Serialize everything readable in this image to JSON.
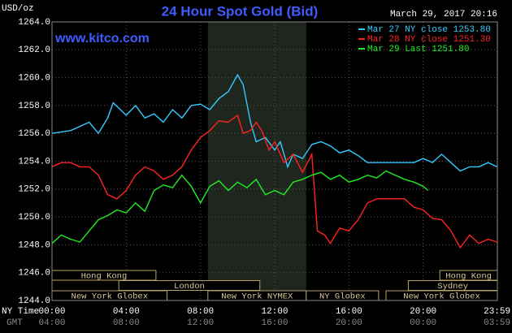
{
  "chart_data": {
    "type": "line",
    "title": "24 Hour Spot Gold (Bid)",
    "site": "www.kitco.com",
    "y_unit": "USD/oz",
    "timestamp": "March 29, 2017 20:16",
    "x_label_top": "NY Time",
    "x_label_bottom": "GMT",
    "xlim": [
      0,
      24
    ],
    "ylim": [
      1244,
      1264
    ],
    "grid": true,
    "legend": "top-right",
    "yticks": [
      {
        "value": 1244,
        "label": "1244.0"
      },
      {
        "value": 1246,
        "label": "1246.0"
      },
      {
        "value": 1248,
        "label": "1248.0"
      },
      {
        "value": 1250,
        "label": "1250.0"
      },
      {
        "value": 1252,
        "label": "1252.0"
      },
      {
        "value": 1254,
        "label": "1254.0"
      },
      {
        "value": 1256,
        "label": "1256.0"
      },
      {
        "value": 1258,
        "label": "1258.0"
      },
      {
        "value": 1260,
        "label": "1260.0"
      },
      {
        "value": 1262,
        "label": "1262.0"
      },
      {
        "value": 1264,
        "label": "1264.0"
      }
    ],
    "xticks": [
      {
        "value": 0,
        "label": "00:00"
      },
      {
        "value": 4,
        "label": "04:00"
      },
      {
        "value": 8,
        "label": "08:00"
      },
      {
        "value": 12,
        "label": "12:00"
      },
      {
        "value": 16,
        "label": "16:00"
      },
      {
        "value": 20,
        "label": "20:00"
      },
      {
        "value": 23.983,
        "label": "23:59"
      }
    ],
    "gmt_tick_labels": [
      "04:00",
      "08:00",
      "12:00",
      "16:00",
      "20:00",
      "00:00",
      "03:59"
    ],
    "sessions": [
      {
        "label": "Hong Kong",
        "start": 0,
        "end": 5.6
      },
      {
        "label": "London",
        "start": 3.6,
        "end": 11.2
      },
      {
        "label": "New York Globex",
        "start": 0,
        "end": 6.2
      },
      {
        "label": "New York NYMEX",
        "start": 8.4,
        "end": 13.7
      },
      {
        "label": "NY Globex",
        "start": 13.7,
        "end": 17.6
      },
      {
        "label": "Hong Kong",
        "start": 20.9,
        "end": 24
      },
      {
        "label": "Sydney",
        "start": 19.2,
        "end": 24
      },
      {
        "label": "New York Globex",
        "start": 18,
        "end": 24
      }
    ],
    "series": [
      {
        "name": "Mar 27 NY close 1253.80",
        "color": "#33ccff",
        "x": [
          0,
          1,
          2,
          2.5,
          3,
          3.3,
          4,
          4.5,
          5,
          5.5,
          6,
          6.5,
          7,
          7.5,
          8,
          8.5,
          9,
          9.5,
          10,
          10.3,
          10.7,
          11,
          11.5,
          12,
          12.3,
          12.7,
          13,
          13.5,
          14,
          14.5,
          15,
          15.5,
          16,
          16.5,
          17,
          18,
          19,
          19.5,
          20,
          20.5,
          21,
          21.5,
          22,
          22.5,
          23,
          23.5,
          23.98
        ],
        "values": [
          1256.0,
          1256.2,
          1256.8,
          1256.0,
          1257.1,
          1258.2,
          1257.3,
          1258.0,
          1257.1,
          1257.4,
          1256.8,
          1257.7,
          1257.1,
          1258.0,
          1258.1,
          1257.7,
          1258.5,
          1259.0,
          1260.2,
          1259.5,
          1256.8,
          1255.4,
          1255.7,
          1254.8,
          1255.4,
          1253.6,
          1254.5,
          1254.2,
          1255.2,
          1255.4,
          1255.1,
          1254.6,
          1254.8,
          1254.4,
          1253.9,
          1253.9,
          1253.9,
          1253.9,
          1254.2,
          1253.9,
          1254.5,
          1253.9,
          1253.3,
          1253.6,
          1253.6,
          1253.9,
          1253.6
        ]
      },
      {
        "name": "Mar 28 NY close 1251.30",
        "color": "#ff2222",
        "x": [
          0,
          0.5,
          1,
          1.5,
          2,
          2.5,
          3,
          3.5,
          4,
          4.5,
          5,
          5.5,
          6,
          6.5,
          7,
          7.5,
          8,
          8.5,
          9,
          9.5,
          10,
          10.3,
          10.7,
          11,
          11.3,
          11.7,
          12,
          12.5,
          13,
          13.5,
          14,
          14.3,
          14.7,
          15,
          15.5,
          16,
          16.5,
          17,
          17.5,
          18,
          19,
          19.5,
          20,
          20.5,
          21,
          21.5,
          22,
          22.5,
          23,
          23.5,
          23.98
        ],
        "values": [
          1253.6,
          1253.9,
          1253.9,
          1253.6,
          1253.6,
          1253.0,
          1251.6,
          1251.3,
          1251.9,
          1253.0,
          1253.6,
          1253.3,
          1252.7,
          1253.0,
          1253.6,
          1254.8,
          1255.7,
          1256.2,
          1256.9,
          1256.8,
          1257.3,
          1256.0,
          1256.2,
          1256.8,
          1256.2,
          1254.8,
          1255.4,
          1253.9,
          1254.5,
          1253.2,
          1254.5,
          1249.0,
          1248.7,
          1248.1,
          1249.2,
          1249.0,
          1249.8,
          1251.0,
          1251.3,
          1251.3,
          1251.3,
          1250.7,
          1250.5,
          1249.9,
          1249.8,
          1249.0,
          1247.8,
          1248.7,
          1248.1,
          1248.4,
          1248.2
        ]
      },
      {
        "name": "Mar 29 Last 1251.80",
        "color": "#22ee22",
        "x": [
          0,
          0.5,
          1,
          1.5,
          2,
          2.5,
          3,
          3.5,
          4,
          4.5,
          5,
          5.5,
          6,
          6.5,
          7,
          7.5,
          8,
          8.5,
          9,
          9.5,
          10,
          10.5,
          11,
          11.5,
          12,
          12.5,
          13,
          13.5,
          14,
          14.5,
          15,
          15.5,
          16,
          16.5,
          17,
          17.5,
          18,
          18.5,
          19,
          19.5,
          20,
          20.27
        ],
        "values": [
          1248.1,
          1248.7,
          1248.4,
          1248.2,
          1249.0,
          1249.8,
          1250.1,
          1250.5,
          1250.3,
          1251.0,
          1250.4,
          1251.9,
          1252.3,
          1252.1,
          1253.0,
          1252.2,
          1251.0,
          1252.2,
          1252.6,
          1251.9,
          1252.5,
          1252.1,
          1252.7,
          1251.6,
          1251.9,
          1251.6,
          1252.5,
          1252.7,
          1253.0,
          1253.2,
          1252.7,
          1253.0,
          1252.5,
          1252.7,
          1253.0,
          1252.8,
          1253.3,
          1253.0,
          1252.7,
          1252.5,
          1252.2,
          1251.9
        ]
      }
    ]
  }
}
